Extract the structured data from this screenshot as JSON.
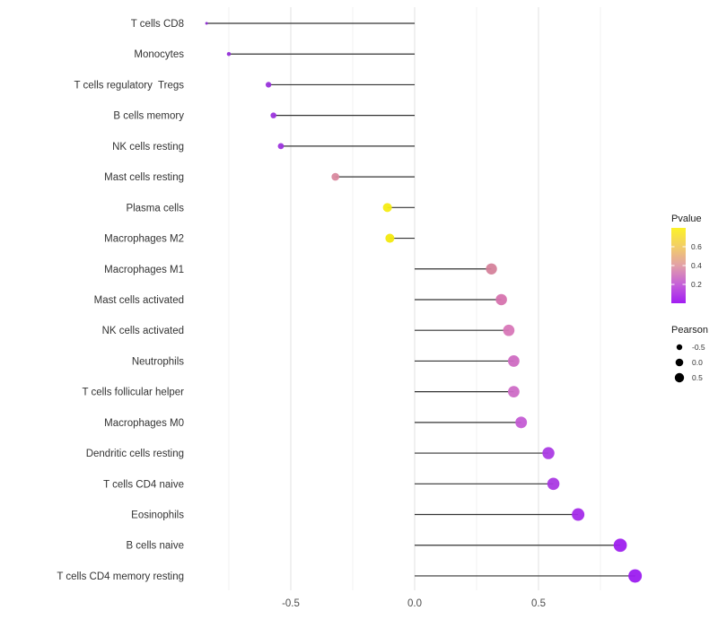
{
  "chart_data": {
    "type": "scatter",
    "subtype": "lollipop",
    "title": "",
    "xlabel": "",
    "ylabel": "",
    "grid": true,
    "xlim": [
      -0.87,
      0.97
    ],
    "x_major_ticks": [
      -0.5,
      0.0,
      0.5
    ],
    "x_tick_labels": [
      "-0.5",
      "0.0",
      "0.5"
    ],
    "x_minor_ticks": [
      -0.75,
      -0.25,
      0.25,
      0.75
    ],
    "categories": [
      "T cells CD8",
      "Monocytes",
      "T cells regulatory  Tregs",
      "B cells memory",
      "NK cells resting",
      "Mast cells resting",
      "Plasma cells",
      "Macrophages M2",
      "Macrophages M1",
      "Mast cells activated",
      "NK cells activated",
      "Neutrophils",
      "T cells follicular helper",
      "Macrophages M0",
      "Dendritic cells resting",
      "T cells CD4 naive",
      "Eosinophils",
      "B cells naive",
      "T cells CD4 memory resting"
    ],
    "series": [
      {
        "name": "Pearson",
        "values": [
          -0.84,
          -0.75,
          -0.59,
          -0.57,
          -0.54,
          -0.32,
          -0.11,
          -0.1,
          0.31,
          0.35,
          0.38,
          0.4,
          0.4,
          0.43,
          0.54,
          0.56,
          0.66,
          0.83,
          0.89
        ]
      }
    ],
    "point_colors": [
      "#8d2bd1",
      "#9430d8",
      "#9933db",
      "#9c35dd",
      "#9d35de",
      "#d9899f",
      "#f5ec13",
      "#f3e90e",
      "#d5829b",
      "#d673ae",
      "#d877b8",
      "#cf6cc2",
      "#ce6bc6",
      "#c45cd4",
      "#ab3be4",
      "#aa39e3",
      "#a42ce9",
      "#9e20ee",
      "#9c1cf0"
    ],
    "stem_color": "#333333",
    "axis_text_color": "#4d4d4d",
    "label_color": "#333333",
    "grid_major_color": "#e2e2e2",
    "grid_minor_color": "#f0f0f0",
    "legend_pvalue": {
      "title": "Pvalue",
      "tick_labels": [
        "0.6",
        "0.4",
        "0.2"
      ],
      "tick_values": [
        0.6,
        0.4,
        0.2
      ],
      "bar_range": [
        0.0,
        0.8
      ],
      "gradient_top_to_bottom": [
        "#fcf227",
        "#f2cd68",
        "#e2a0a8",
        "#c560d8",
        "#a21df2"
      ]
    },
    "legend_pearson": {
      "title": "Pearson",
      "labels": [
        "-0.5",
        "0.0",
        "0.5"
      ],
      "values": [
        -0.5,
        0.0,
        0.5
      ],
      "dot_color": "#000000"
    }
  }
}
